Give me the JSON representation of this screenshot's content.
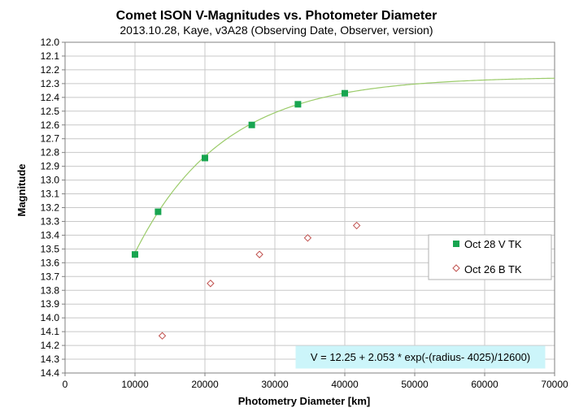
{
  "chart_data": {
    "type": "scatter",
    "title": "Comet ISON V-Magnitudes  vs.  Photometer Diameter",
    "subtitle": "2013.10.28,  Kaye,  v3A28  (Observing Date, Observer, version)",
    "xlabel": "Photometry Diameter  [km]",
    "ylabel": "Magnitude",
    "xlim": [
      0,
      70000
    ],
    "ylim": [
      12.0,
      14.4
    ],
    "y_inverted": true,
    "x_ticks": [
      "0",
      "10000",
      "20000",
      "30000",
      "40000",
      "50000",
      "60000",
      "70000"
    ],
    "y_ticks": [
      "12.0",
      "12.1",
      "12.2",
      "12.3",
      "12.4",
      "12.5",
      "12.6",
      "12.7",
      "12.8",
      "12.9",
      "13.0",
      "13.1",
      "13.2",
      "13.3",
      "13.4",
      "13.5",
      "13.6",
      "13.7",
      "13.8",
      "13.9",
      "14.0",
      "14.1",
      "14.2",
      "14.3",
      "14.4"
    ],
    "grid": true,
    "legend_position": "right",
    "series": [
      {
        "name": "Oct 28 V TK",
        "marker": "square",
        "color": "#18a550",
        "points": [
          [
            10000,
            13.54
          ],
          [
            13300,
            13.23
          ],
          [
            20000,
            12.84
          ],
          [
            26700,
            12.6
          ],
          [
            33300,
            12.45
          ],
          [
            40000,
            12.37
          ]
        ]
      },
      {
        "name": "Oct 26 B TK",
        "marker": "diamond-open",
        "color": "#c0504d",
        "points": [
          [
            13900,
            14.13
          ],
          [
            20800,
            13.75
          ],
          [
            27800,
            13.54
          ],
          [
            34700,
            13.42
          ],
          [
            41700,
            13.33
          ]
        ]
      }
    ],
    "fit": {
      "formula": "V = 12.25 + 2.053 * exp(-(radius- 4025)/12600)",
      "color": "#9bcb6a",
      "a": 12.25,
      "b": 2.053,
      "r0": 4025,
      "k": 12600,
      "x_start": 10000,
      "x_end": 70000
    }
  }
}
